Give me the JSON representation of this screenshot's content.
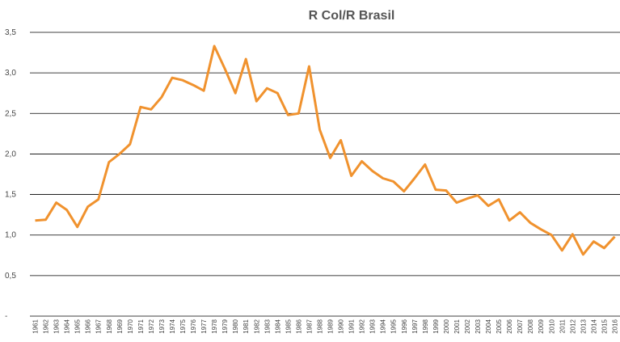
{
  "chart_data": {
    "type": "line",
    "title": "R Col/R Brasil",
    "categories": [
      "1961",
      "1962",
      "1963",
      "1964",
      "1965",
      "1966",
      "1967",
      "1968",
      "1969",
      "1970",
      "1971",
      "1972",
      "1973",
      "1974",
      "1975",
      "1976",
      "1977",
      "1978",
      "1979",
      "1980",
      "1981",
      "1982",
      "1983",
      "1984",
      "1985",
      "1986",
      "1987",
      "1988",
      "1989",
      "1990",
      "1991",
      "1992",
      "1993",
      "1994",
      "1995",
      "1996",
      "1997",
      "1998",
      "1999",
      "2000",
      "2001",
      "2002",
      "2003",
      "2004",
      "2005",
      "2006",
      "2007",
      "2008",
      "2009",
      "2010",
      "2011",
      "2012",
      "2013",
      "2014",
      "2015",
      "2016"
    ],
    "series": [
      {
        "name": "R Col/R Brasil",
        "color": "#f0922e",
        "values": [
          1.18,
          1.19,
          1.4,
          1.31,
          1.1,
          1.35,
          1.44,
          1.9,
          2.0,
          2.12,
          2.58,
          2.55,
          2.7,
          2.94,
          2.91,
          2.85,
          2.78,
          3.33,
          3.05,
          2.75,
          3.17,
          2.65,
          2.81,
          2.75,
          2.48,
          2.5,
          3.08,
          2.3,
          1.95,
          2.17,
          1.73,
          1.91,
          1.79,
          1.7,
          1.66,
          1.54,
          1.7,
          1.87,
          1.56,
          1.55,
          1.4,
          1.45,
          1.49,
          1.36,
          1.44,
          1.18,
          1.28,
          1.15,
          1.07,
          1.0,
          0.81,
          1.01,
          0.76,
          0.92,
          0.84,
          0.98
        ]
      }
    ],
    "ylim": [
      0,
      3.5
    ],
    "yticks": [
      {
        "value": 0,
        "label": "-"
      },
      {
        "value": 0.5,
        "label": "0,5"
      },
      {
        "value": 1,
        "label": "1,0"
      },
      {
        "value": 1.5,
        "label": "1,5"
      },
      {
        "value": 2,
        "label": "2,0"
      },
      {
        "value": 2.5,
        "label": "2,5"
      },
      {
        "value": 3,
        "label": "3,0"
      },
      {
        "value": 3.5,
        "label": "3,5"
      }
    ],
    "grid": true
  }
}
